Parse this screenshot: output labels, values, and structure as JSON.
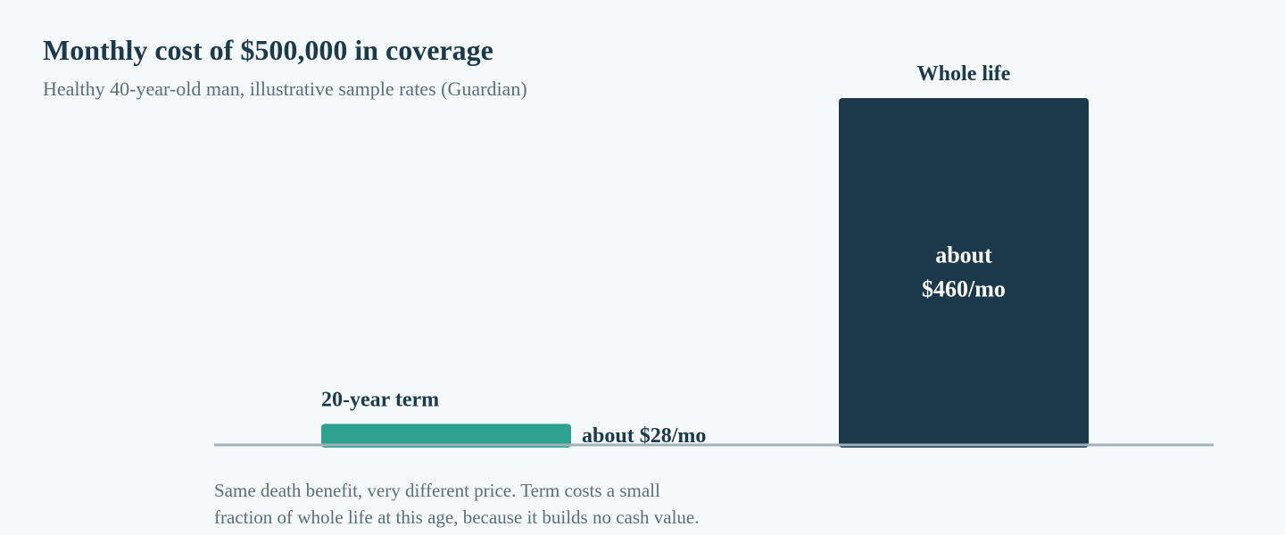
{
  "chart_data": {
    "type": "bar",
    "orientation": "horizontal-baseline",
    "title": "Monthly cost of $500,000 in coverage",
    "subtitle": "Healthy 40-year-old man, illustrative sample rates (Guardian)",
    "categories": [
      "20-year term",
      "Whole life"
    ],
    "values": [
      28,
      460
    ],
    "data_labels": [
      [
        "about $28/mo"
      ],
      [
        "about",
        "$460/mo"
      ]
    ],
    "unit": "$/mo",
    "ylim": [
      0,
      460
    ],
    "grid": false,
    "legend": "none",
    "colors": [
      "#2fa18f",
      "#1c394b"
    ],
    "note": [
      "Same death benefit, very different price. Term costs a small",
      "fraction of whole life at this age, because it builds no cash value."
    ]
  }
}
